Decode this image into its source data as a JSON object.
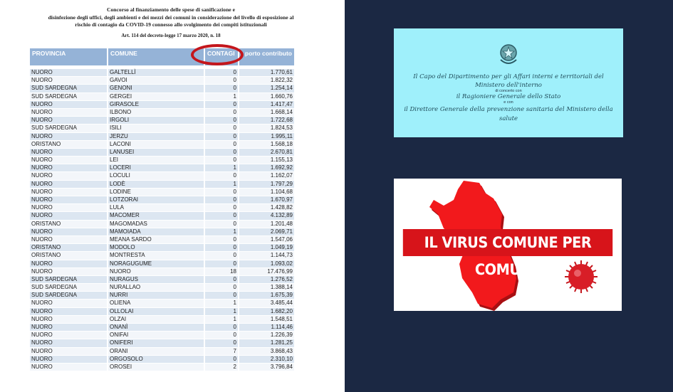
{
  "document": {
    "title_lines": [
      "Concorso al finanziamento delle spese di sanificazione e",
      "disinfezione degli uffici, degli ambienti e dei mezzi dei comuni in considerazione del livello di esposizione al",
      "rischio di contagio da COVID-19 connesso allo svolgimento dei compiti istituzionali"
    ],
    "article": "Art. 114 del decreto-legge 17 marzo 2020, n. 18",
    "columns": [
      "PROVINCIA",
      "COMUNE",
      "CONTAGI",
      "porto contributo"
    ],
    "highlight_color": "#c4161c",
    "rows": [
      [
        "NUORO",
        "GALTELLÌ",
        "0",
        "1.770,61"
      ],
      [
        "NUORO",
        "GAVOI",
        "0",
        "1.822,32"
      ],
      [
        "SUD SARDEGNA",
        "GENONI",
        "0",
        "1.254,14"
      ],
      [
        "SUD SARDEGNA",
        "GERGEI",
        "1",
        "1.660,76"
      ],
      [
        "NUORO",
        "GIRASOLE",
        "0",
        "1.417,47"
      ],
      [
        "NUORO",
        "ILBONO",
        "0",
        "1.668,14"
      ],
      [
        "NUORO",
        "IRGOLI",
        "0",
        "1.722,68"
      ],
      [
        "SUD SARDEGNA",
        "ISILI",
        "0",
        "1.824,53"
      ],
      [
        "NUORO",
        "JERZU",
        "0",
        "1.995,11"
      ],
      [
        "ORISTANO",
        "LACONI",
        "0",
        "1.568,18"
      ],
      [
        "NUORO",
        "LANUSEI",
        "0",
        "2.670,81"
      ],
      [
        "NUORO",
        "LEI",
        "0",
        "1.155,13"
      ],
      [
        "NUORO",
        "LOCERI",
        "1",
        "1.692,92"
      ],
      [
        "NUORO",
        "LOCULI",
        "0",
        "1.162,07"
      ],
      [
        "NUORO",
        "LODÈ",
        "1",
        "1.797,29"
      ],
      [
        "NUORO",
        "LODINE",
        "0",
        "1.104,68"
      ],
      [
        "NUORO",
        "LOTZORAI",
        "0",
        "1.670,97"
      ],
      [
        "NUORO",
        "LULA",
        "0",
        "1.428,82"
      ],
      [
        "NUORO",
        "MACOMER",
        "0",
        "4.132,89"
      ],
      [
        "ORISTANO",
        "MAGOMADAS",
        "0",
        "1.201,48"
      ],
      [
        "NUORO",
        "MAMOIADA",
        "1",
        "2.069,71"
      ],
      [
        "NUORO",
        "MEANA SARDO",
        "0",
        "1.547,06"
      ],
      [
        "ORISTANO",
        "MODOLO",
        "0",
        "1.049,19"
      ],
      [
        "ORISTANO",
        "MONTRESTA",
        "0",
        "1.144,73"
      ],
      [
        "NUORO",
        "NORAGUGUME",
        "0",
        "1.093,02"
      ],
      [
        "NUORO",
        "NUORO",
        "18",
        "17.476,99"
      ],
      [
        "SUD SARDEGNA",
        "NURAGUS",
        "0",
        "1.276,52"
      ],
      [
        "SUD SARDEGNA",
        "NURALLAO",
        "0",
        "1.388,14"
      ],
      [
        "SUD SARDEGNA",
        "NURRI",
        "0",
        "1.675,39"
      ],
      [
        "NUORO",
        "OLIENA",
        "1",
        "3.485,44"
      ],
      [
        "NUORO",
        "OLLOLAI",
        "1",
        "1.682,20"
      ],
      [
        "NUORO",
        "OLZAI",
        "1",
        "1.548,51"
      ],
      [
        "NUORO",
        "ONANÌ",
        "0",
        "1.114,46"
      ],
      [
        "NUORO",
        "ONIFAI",
        "0",
        "1.226,39"
      ],
      [
        "NUORO",
        "ONIFERI",
        "0",
        "1.281,25"
      ],
      [
        "NUORO",
        "ORANI",
        "7",
        "3.868,43"
      ],
      [
        "NUORO",
        "ORGOSOLO",
        "0",
        "2.310,10"
      ],
      [
        "NUORO",
        "OROSEI",
        "2",
        "3.796,84"
      ]
    ]
  },
  "decree_card": {
    "emblem": "italian-republic-emblem-icon",
    "line1": "Il Capo del Dipartimento per gli Affari interni e territoriali del",
    "line2": "Ministero dell'interno",
    "line3": "di concerto con",
    "line4": "il Ragioniere Generale dello Stato",
    "line5": "e con",
    "line6": "il Direttore Generale della prevenzione sanitaria del Ministero della",
    "line7": "salute",
    "background": "#9ff0fb"
  },
  "banner_card": {
    "headline": "IL VIRUS COMUNE PER COMUNE",
    "banner_color": "#d7141a",
    "icons": [
      "sardinia-map-icon",
      "virus-icon"
    ]
  }
}
